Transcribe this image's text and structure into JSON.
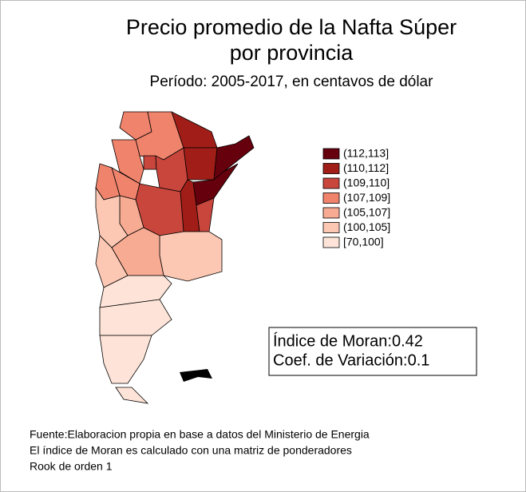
{
  "title": [
    "Precio promedio de la Nafta Súper",
    "por provincia"
  ],
  "subtitle": "Período: 2005-2017, en centavos de dólar",
  "legend": [
    {
      "label": "(112,113]",
      "color": "#67000d"
    },
    {
      "label": "(110,112]",
      "color": "#a11d17"
    },
    {
      "label": "(109,110]",
      "color": "#c9463d"
    },
    {
      "label": "(107,109]",
      "color": "#f0836c"
    },
    {
      "label": "(105,107]",
      "color": "#f8ab93"
    },
    {
      "label": "(100,105]",
      "color": "#fcc8b4"
    },
    {
      "label": "[70,100]",
      "color": "#fee4d8"
    }
  ],
  "stats": [
    "Índice de Moran:0.42",
    "Coef. de Variación:0.1"
  ],
  "notes": [
    "Fuente:Elaboracion propia en base a datos del  Ministerio de Energia",
    "El índice de Moran es calculado con una matriz de ponderadores",
    "Rook de orden 1"
  ]
}
